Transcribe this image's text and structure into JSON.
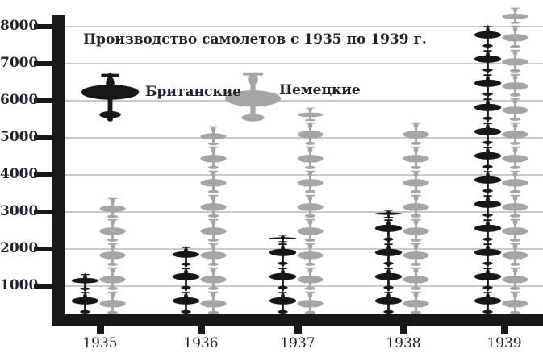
{
  "title": "Производство самолетов с 1935 по 1939 г.",
  "legend": {
    "british_label": "Британские",
    "german_label": "Немецкие"
  },
  "colors": {
    "british": "#171717",
    "german": "#a5a5a5",
    "gridline": "#c9c9c9",
    "axis": "#181818",
    "text": "#23232b"
  },
  "y_axis": {
    "tick_labels": [
      "8000",
      "7000",
      "6000",
      "5000",
      "4000",
      "3000",
      "2000",
      "1000"
    ]
  },
  "x_axis": {
    "tick_labels": [
      "1935",
      "1936",
      "1937",
      "1938",
      "1939"
    ]
  },
  "chart_data": {
    "type": "bar",
    "subtype": "pictogram-stacked-airplane-icons",
    "title": "Производство самолетов с 1935 по 1939 г.",
    "categories": [
      "1935",
      "1936",
      "1937",
      "1938",
      "1939"
    ],
    "series": [
      {
        "name": "Британские",
        "color": "#171717",
        "icon": "british-airplane-top-view",
        "values": [
          1140,
          1877,
          2153,
          2827,
          7940
        ]
      },
      {
        "name": "Немецкие",
        "color": "#a5a5a5",
        "icon": "german-airplane-top-view",
        "values": [
          3183,
          5112,
          5606,
          5235,
          8295
        ]
      }
    ],
    "xlabel": "",
    "ylabel": "",
    "ylim": [
      0,
      8500
    ],
    "y_ticks": [
      1000,
      2000,
      3000,
      4000,
      5000,
      6000,
      7000,
      8000
    ],
    "grid": true,
    "legend_position": "top-left"
  }
}
